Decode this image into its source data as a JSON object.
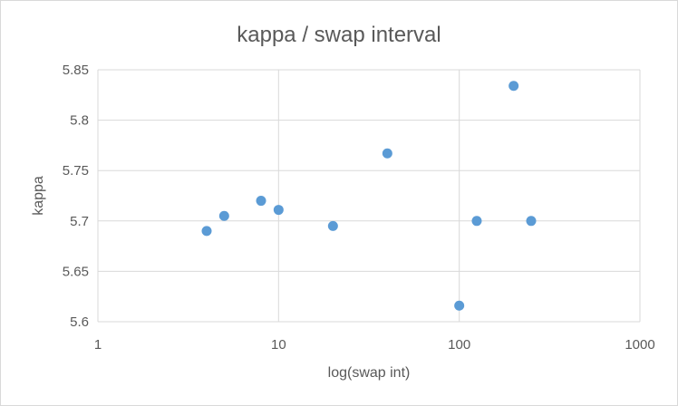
{
  "chart_data": {
    "type": "scatter",
    "title": "kappa / swap interval",
    "xlabel": "log(swap int)",
    "ylabel": "kappa",
    "x_scale": "log",
    "xlim": [
      1,
      1000
    ],
    "ylim": [
      5.6,
      5.85
    ],
    "x_ticks": [
      "1",
      "10",
      "100",
      "1000"
    ],
    "y_ticks": [
      "5.6",
      "5.65",
      "5.7",
      "5.75",
      "5.8",
      "5.85"
    ],
    "grid": true,
    "legend": "none",
    "marker_color": "#5b9bd5",
    "series": [
      {
        "points": [
          {
            "x": 4,
            "y": 5.69
          },
          {
            "x": 5,
            "y": 5.705
          },
          {
            "x": 8,
            "y": 5.72
          },
          {
            "x": 10,
            "y": 5.711
          },
          {
            "x": 20,
            "y": 5.695
          },
          {
            "x": 40,
            "y": 5.767
          },
          {
            "x": 100,
            "y": 5.616
          },
          {
            "x": 125,
            "y": 5.7
          },
          {
            "x": 200,
            "y": 5.834
          },
          {
            "x": 250,
            "y": 5.7
          }
        ]
      }
    ]
  }
}
